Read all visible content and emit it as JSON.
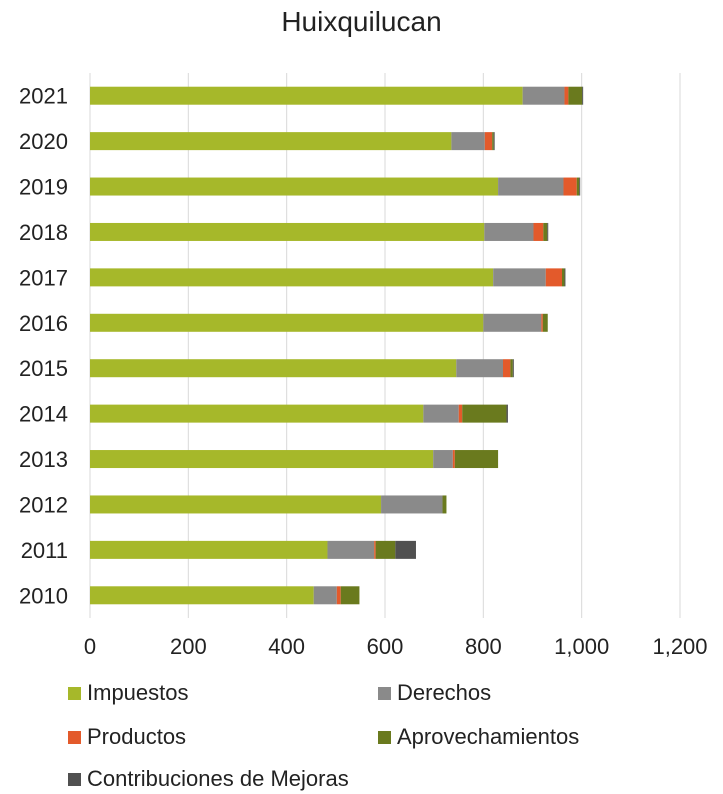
{
  "chart_data": {
    "type": "bar",
    "orientation": "horizontal",
    "stacked": true,
    "title": "Huixquilucan",
    "categories": [
      "2021",
      "2020",
      "2019",
      "2018",
      "2017",
      "2016",
      "2015",
      "2014",
      "2013",
      "2012",
      "2011",
      "2010"
    ],
    "series": [
      {
        "name": "Impuestos",
        "color": "#a6b82a",
        "values": [
          880,
          735,
          830,
          802,
          820,
          800,
          745,
          678,
          698,
          592,
          483,
          455
        ]
      },
      {
        "name": "Derechos",
        "color": "#8a8a8a",
        "values": [
          85,
          68,
          133,
          100,
          107,
          118,
          95,
          72,
          40,
          125,
          95,
          47
        ]
      },
      {
        "name": "Productos",
        "color": "#e35a2b",
        "values": [
          8,
          15,
          27,
          20,
          33,
          3,
          15,
          7,
          4,
          0,
          3,
          8
        ]
      },
      {
        "name": "Aprovechamientos",
        "color": "#6a7a1e",
        "values": [
          28,
          3,
          5,
          8,
          5,
          10,
          5,
          90,
          88,
          8,
          40,
          38
        ]
      },
      {
        "name": "Contribuciones de Mejoras",
        "color": "#505050",
        "values": [
          2,
          2,
          2,
          2,
          2,
          0,
          2,
          3,
          0,
          0,
          42,
          0
        ]
      }
    ],
    "xlim": [
      0,
      1200
    ],
    "xticks": [
      "0",
      "200",
      "400",
      "600",
      "800",
      "1,000",
      "1,200"
    ],
    "xtick_values": [
      0,
      200,
      400,
      600,
      800,
      1000,
      1200
    ],
    "grid": true,
    "legend_position": "bottom"
  }
}
